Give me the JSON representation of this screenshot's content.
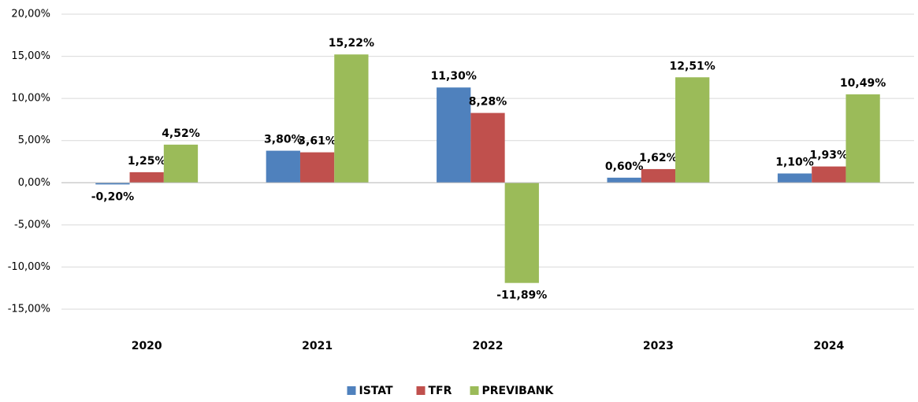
{
  "chart_data": {
    "type": "bar",
    "categories": [
      "2020",
      "2021",
      "2022",
      "2023",
      "2024"
    ],
    "series": [
      {
        "name": "ISTAT",
        "color": "#4f81bd",
        "values": [
          -0.2,
          3.8,
          11.3,
          0.6,
          1.1
        ],
        "value_labels": [
          "-0,20%",
          "3,80%",
          "11,30%",
          "0,60%",
          "1,10%"
        ]
      },
      {
        "name": "TFR",
        "color": "#c0504d",
        "values": [
          1.25,
          3.61,
          8.28,
          1.62,
          1.93
        ],
        "value_labels": [
          "1,25%",
          "3,61%",
          "8,28%",
          "1,62%",
          "1,93%"
        ]
      },
      {
        "name": "PREVIBANK",
        "color": "#9bbb59",
        "values": [
          4.52,
          15.22,
          -11.89,
          12.51,
          10.49
        ],
        "value_labels": [
          "4,52%",
          "15,22%",
          "-11,89%",
          "12,51%",
          "10,49%"
        ]
      }
    ],
    "ylim": [
      -15,
      20
    ],
    "yticks": [
      {
        "value": -15,
        "label": "-15,00%"
      },
      {
        "value": -10,
        "label": "-10,00%"
      },
      {
        "value": -5,
        "label": "-5,00%"
      },
      {
        "value": 0,
        "label": "0,00%"
      },
      {
        "value": 5,
        "label": "5,00%"
      },
      {
        "value": 10,
        "label": "10,00%"
      },
      {
        "value": 15,
        "label": "15,00%"
      },
      {
        "value": 20,
        "label": "20,00%"
      }
    ],
    "grid": true,
    "legend": "bottom"
  }
}
